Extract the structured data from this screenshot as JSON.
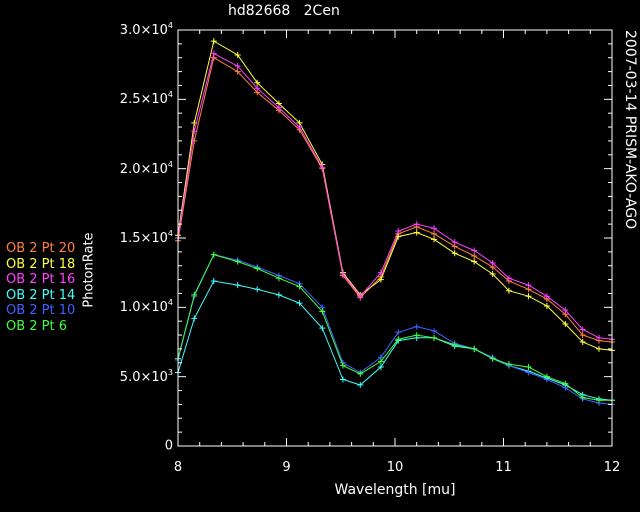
{
  "title": "hd82668   2Cen",
  "side_title": "2007-03-14 PRISM-AKO-AGO",
  "colors": {
    "background": "#000000",
    "axes": "#ffffff"
  },
  "chart_data": {
    "type": "line",
    "xlabel": "Wavelength [mu]",
    "ylabel": "PhotonRate",
    "xlim": [
      8,
      12
    ],
    "ylim": [
      0,
      30000
    ],
    "x_ticks": [
      "8",
      "9",
      "10",
      "11",
      "12"
    ],
    "y_ticks": [
      {
        "m": "0",
        "e": ""
      },
      {
        "m": "5.0×10",
        "e": "3"
      },
      {
        "m": "1.0×10",
        "e": "4"
      },
      {
        "m": "1.5×10",
        "e": "4"
      },
      {
        "m": "2.0×10",
        "e": "4"
      },
      {
        "m": "2.5×10",
        "e": "4"
      },
      {
        "m": "3.0×10",
        "e": "4"
      }
    ],
    "y_tick_values": [
      0,
      5000,
      10000,
      15000,
      20000,
      25000,
      30000
    ],
    "legend_position": "left",
    "x": [
      8.0,
      8.15,
      8.33,
      8.55,
      8.73,
      8.93,
      9.12,
      9.33,
      9.52,
      9.68,
      9.87,
      10.03,
      10.2,
      10.36,
      10.55,
      10.73,
      10.9,
      11.05,
      11.23,
      11.4,
      11.57,
      11.73,
      11.88,
      12.0
    ],
    "series": [
      {
        "name": "OB 2 Pt 20",
        "color": "#ff8040",
        "values": [
          14800,
          22000,
          28000,
          27000,
          25500,
          24200,
          22800,
          20000,
          12300,
          10700,
          12200,
          15300,
          15800,
          15300,
          14400,
          13700,
          12900,
          11900,
          11300,
          10600,
          9500,
          8000,
          7600,
          7500
        ]
      },
      {
        "name": "OB 2 Pt 18",
        "color": "#ffff40",
        "values": [
          15200,
          23300,
          29200,
          28200,
          26200,
          24700,
          23300,
          20300,
          12500,
          10900,
          12000,
          15100,
          15400,
          14900,
          13900,
          13300,
          12400,
          11200,
          10800,
          10100,
          8800,
          7500,
          7000,
          6900
        ]
      },
      {
        "name": "OB 2 Pt 16",
        "color": "#ff40ff",
        "values": [
          15000,
          22700,
          28300,
          27400,
          25800,
          24400,
          23000,
          20100,
          12400,
          10800,
          12500,
          15500,
          16000,
          15700,
          14700,
          14100,
          13200,
          12100,
          11600,
          10800,
          9800,
          8400,
          7800,
          7700
        ]
      },
      {
        "name": "OB 2 Pt 14",
        "color": "#40ffff",
        "values": [
          5300,
          9200,
          11900,
          11600,
          11300,
          10900,
          10300,
          8500,
          4800,
          4400,
          5700,
          7600,
          7800,
          7800,
          7200,
          7000,
          6300,
          5800,
          5400,
          4900,
          4400,
          3700,
          3400,
          3300
        ]
      },
      {
        "name": "OB 2 Pt 10",
        "color": "#4060ff",
        "values": [
          6200,
          10800,
          13800,
          13400,
          12900,
          12300,
          11700,
          10000,
          6000,
          5300,
          6400,
          8200,
          8600,
          8300,
          7400,
          7000,
          6400,
          5800,
          5300,
          4800,
          4200,
          3400,
          3100,
          3000
        ]
      },
      {
        "name": "OB 2 Pt 6",
        "color": "#40ff40",
        "values": [
          6300,
          10900,
          13800,
          13300,
          12800,
          12100,
          11500,
          9700,
          5800,
          5200,
          6100,
          7700,
          8000,
          7800,
          7300,
          7000,
          6300,
          5900,
          5700,
          5000,
          4500,
          3500,
          3300,
          3300
        ]
      }
    ]
  }
}
